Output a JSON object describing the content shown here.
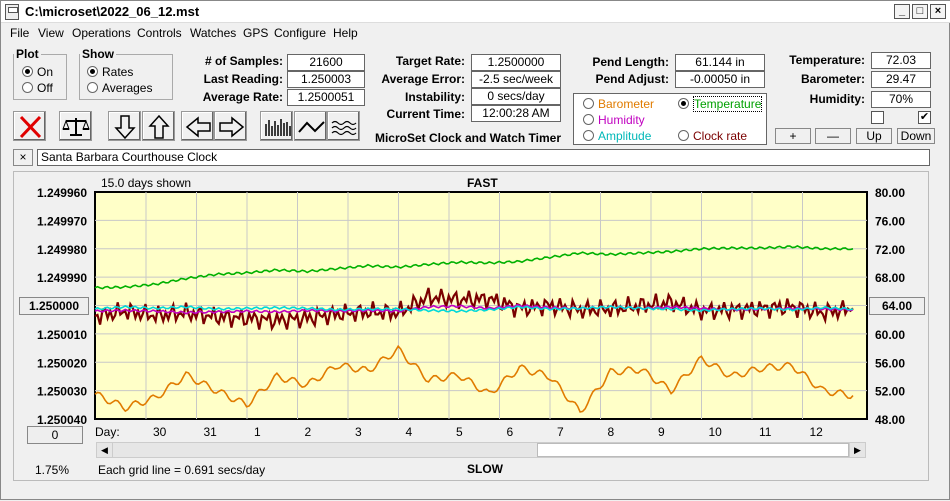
{
  "window": {
    "title": "C:\\microset\\2022_06_12.mst"
  },
  "menu": [
    "File",
    "View",
    "Operations",
    "Controls",
    "Watches",
    "GPS",
    "Configure",
    "Help"
  ],
  "plot_group": {
    "title": "Plot",
    "options": [
      "On",
      "Off"
    ],
    "selected": "On"
  },
  "show_group": {
    "title": "Show",
    "options": [
      "Rates",
      "Averages"
    ],
    "selected": "Rates"
  },
  "stats": {
    "samples_label": "# of Samples:",
    "samples": "21600",
    "last_reading_label": "Last Reading:",
    "last_reading": "1.250003",
    "average_rate_label": "Average Rate:",
    "average_rate": "1.2500051",
    "target_rate_label": "Target Rate:",
    "target_rate": "1.2500000",
    "average_error_label": "Average Error:",
    "average_error": "-2.5 sec/week",
    "instability_label": "Instability:",
    "instability": "0 secs/day",
    "current_time_label": "Current Time:",
    "current_time": "12:00:28 AM",
    "pend_length_label": "Pend Length:",
    "pend_length": "61.144 in",
    "pend_adjust_label": "Pend Adjust:",
    "pend_adjust": "-0.00050 in",
    "temperature_label": "Temperature:",
    "temperature": "72.03",
    "barometer_label": "Barometer:",
    "barometer": "29.47",
    "humidity_label": "Humidity:",
    "humidity": "70%"
  },
  "app_subtitle": "MicroSet Clock and Watch Timer",
  "graph_select": {
    "options": [
      {
        "label": "Barometer",
        "color": "#e07b00"
      },
      {
        "label": "Temperature",
        "color": "#00a000"
      },
      {
        "label": "Humidity",
        "color": "#c000c0"
      },
      {
        "label": "Clock rate",
        "color": "#7a0000"
      },
      {
        "label": "Amplitude",
        "color": "#00c0c0"
      }
    ],
    "selected": "Temperature"
  },
  "scale_buttons": [
    "+",
    "—",
    "Up",
    "Down"
  ],
  "clock_name": "Santa Barbara Courthouse Clock",
  "chart_header": {
    "days_shown": "15.0 days shown",
    "top_label": "FAST",
    "bottom_label": "SLOW"
  },
  "chart_footer": {
    "grid_note": "Each grid line = 0.691 secs/day",
    "left_pct": "1.75%"
  },
  "left_button": "1.250000",
  "right_button": "64.00",
  "zero_button": "0",
  "day_axis_label": "Day:",
  "chart_data": {
    "type": "line",
    "y_left_labels": [
      "1.249960",
      "1.249970",
      "1.249980",
      "1.249990",
      "1.250000",
      "1.250010",
      "1.250020",
      "1.250030",
      "1.250040"
    ],
    "y_right_labels": [
      "80.00",
      "76.00",
      "72.00",
      "68.00",
      "64.00",
      "60.00",
      "56.00",
      "52.00",
      "48.00"
    ],
    "x_labels": [
      "30",
      "31",
      "1",
      "2",
      "3",
      "4",
      "5",
      "6",
      "7",
      "8",
      "9",
      "10",
      "11",
      "12"
    ],
    "grid": true,
    "series": [
      {
        "color": "#00b000",
        "values": [
          66.5,
          66.6,
          67.0,
          67.8,
          68.4,
          68.6,
          69.0,
          68.8,
          69.2,
          69.6,
          69.4,
          69.8,
          70.1,
          70.0,
          70.2,
          70.8,
          71.4,
          71.2,
          71.4,
          71.6,
          72.0,
          72.1,
          72.1,
          72.3,
          72.0,
          72.0
        ]
      },
      {
        "color": "#7a0000",
        "values": [
          62.5,
          63.2,
          62.6,
          63.0,
          62.4,
          62.2,
          61.9,
          62.2,
          62.8,
          63.1,
          63.0,
          65.2,
          64.8,
          64.9,
          63.6,
          64.0,
          63.4,
          63.5,
          64.0,
          64.4,
          63.2,
          63.4,
          63.6,
          63.8,
          63.0,
          63.6
        ]
      },
      {
        "color": "#e07b00",
        "values": [
          51.5,
          49.6,
          51.0,
          54.2,
          52.0,
          50.0,
          54.0,
          52.8,
          55.6,
          54.8,
          57.8,
          53.5,
          54.2,
          51.5,
          55.2,
          54.0,
          49.0,
          54.6,
          55.0,
          52.0,
          56.5,
          54.0,
          55.2,
          55.5,
          52.0,
          51.3
        ]
      },
      {
        "color": "#c000c0",
        "values": [
          63.2,
          63.3,
          63.2,
          63.0,
          63.1,
          63.2,
          63.1,
          63.3,
          63.2,
          63.3,
          63.2,
          63.8,
          63.9,
          63.6,
          64.0,
          63.7,
          63.6,
          63.8,
          63.6,
          63.8,
          63.6,
          63.4,
          63.5,
          63.6,
          63.5,
          63.4
        ]
      },
      {
        "color": "#00d8d8",
        "values": [
          63.5,
          63.8,
          63.6,
          63.8,
          63.5,
          63.6,
          63.7,
          63.6,
          63.4,
          63.5,
          63.5,
          63.3,
          63.2,
          63.4,
          63.8,
          63.5,
          63.6,
          63.8,
          63.6,
          63.5,
          63.3,
          63.5,
          63.6,
          63.4,
          63.7,
          63.5
        ]
      }
    ]
  }
}
